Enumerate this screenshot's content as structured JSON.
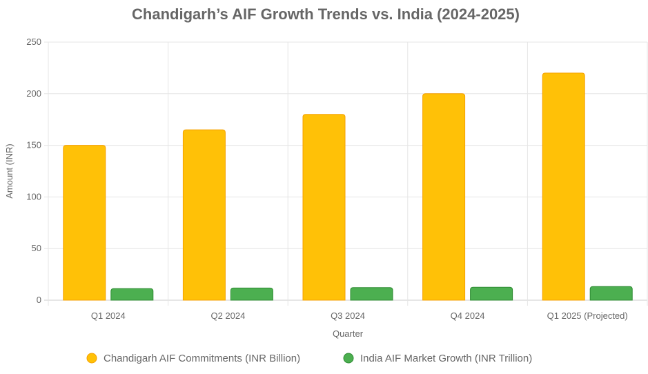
{
  "chart_data": {
    "type": "bar",
    "title": "Chandigarh’s AIF Growth Trends vs. India (2024-2025)",
    "xlabel": "Quarter",
    "ylabel": "Amount (INR)",
    "ylim": [
      0,
      250
    ],
    "yticks": [
      0,
      50,
      100,
      150,
      200,
      250
    ],
    "grid": true,
    "legend_position": "bottom",
    "categories": [
      "Q1 2024",
      "Q2 2024",
      "Q3 2024",
      "Q4 2024",
      "Q1 2025 (Projected)"
    ],
    "series": [
      {
        "name": "Chandigarh AIF Commitments (INR Billion)",
        "color": "#FFC107",
        "border": "#F5A000",
        "values": [
          150,
          165,
          180,
          200,
          220
        ]
      },
      {
        "name": "India AIF Market Growth (INR Trillion)",
        "color": "#4CAF50",
        "border": "#2E8B32",
        "values": [
          11.2,
          11.8,
          12.2,
          12.5,
          13.2
        ]
      }
    ]
  }
}
